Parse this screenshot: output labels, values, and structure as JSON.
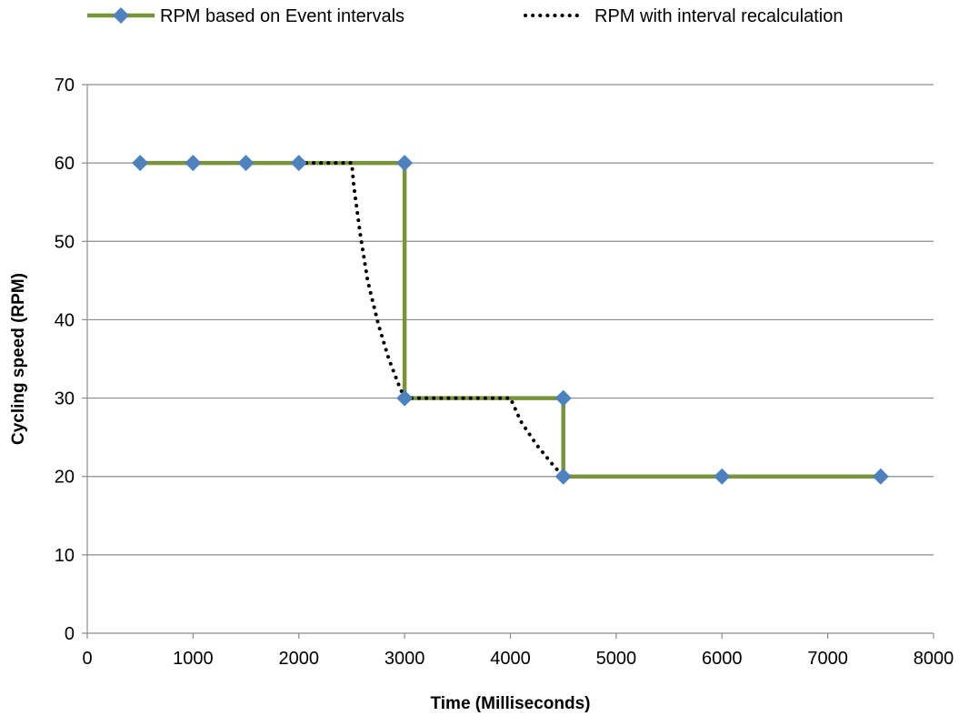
{
  "chart_data": {
    "type": "scatter",
    "title": "",
    "xlabel": "Time (Milliseconds)",
    "ylabel": "Cycling speed (RPM)",
    "xlim": [
      0,
      8000
    ],
    "ylim": [
      0,
      70
    ],
    "x_ticks": [
      0,
      1000,
      2000,
      3000,
      4000,
      5000,
      6000,
      7000,
      8000
    ],
    "y_ticks": [
      0,
      10,
      20,
      30,
      40,
      50,
      60,
      70
    ],
    "grid": "horizontal",
    "legend_position": "top",
    "series": [
      {
        "name": "RPM based on Event intervals",
        "line_style": "solid",
        "marker": "diamond",
        "color": "#77933C",
        "marker_color": "#4F81BD",
        "x": [
          500,
          1000,
          1500,
          2000,
          3000,
          3000,
          4500,
          4500,
          6000,
          7500
        ],
        "y": [
          60,
          60,
          60,
          60,
          60,
          30,
          30,
          20,
          20,
          20
        ]
      },
      {
        "name": "RPM with interval recalculation",
        "line_style": "dotted",
        "marker": "none",
        "color": "#000000",
        "x": [
          2000,
          2500,
          2520,
          2580,
          2650,
          2750,
          2850,
          2950,
          3000,
          4000,
          4100,
          4250,
          4400,
          4500
        ],
        "y": [
          60,
          60,
          57,
          51,
          45,
          39.5,
          35,
          31.5,
          30,
          30,
          27,
          24,
          21.5,
          20
        ]
      }
    ]
  }
}
